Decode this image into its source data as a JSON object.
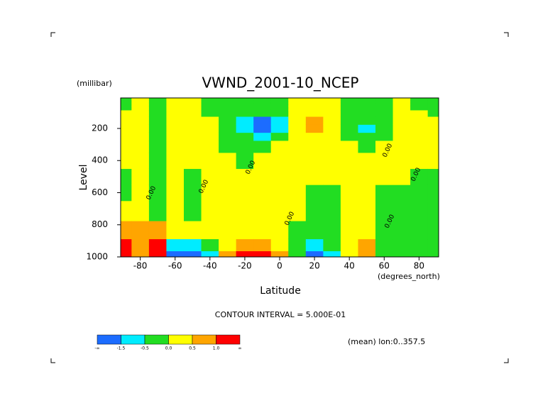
{
  "chart_data": {
    "type": "contour",
    "title": "VWND_2001-10_NCEP",
    "y_units": "(millibar)",
    "y_label": "Level",
    "x_label": "Latitude",
    "x_units": "(degrees_north)",
    "contour_interval_text": "CONTOUR INTERVAL = 5.000E-01",
    "mean_text": "(mean) lon:0..357.5",
    "x": [
      -90,
      -80,
      -70,
      -60,
      -50,
      -40,
      -30,
      -20,
      -10,
      0,
      10,
      20,
      30,
      40,
      50,
      60,
      70,
      80,
      90
    ],
    "y": [
      1000,
      925,
      850,
      700,
      600,
      500,
      400,
      300,
      250,
      200,
      150,
      100,
      70,
      50,
      30,
      20,
      10
    ],
    "z": [
      [
        1.2,
        1.1,
        0.7,
        0.3,
        -0.1,
        -0.1,
        0.1,
        0.2,
        0.2,
        0.1,
        0.1,
        0.1,
        -0.1,
        -0.1,
        -0.1,
        -0.1,
        -0.1
      ],
      [
        0.8,
        0.8,
        0.6,
        0.3,
        0.2,
        0.1,
        0.1,
        0.2,
        0.2,
        0.2,
        0.1,
        0.1,
        0.1,
        0.1,
        0.1,
        0.1,
        0.1
      ],
      [
        1.1,
        1.0,
        0.6,
        -0.1,
        -0.2,
        -0.2,
        -0.2,
        -0.2,
        -0.2,
        -0.2,
        -0.2,
        -0.2,
        -0.1,
        -0.1,
        -0.1,
        -0.1,
        -0.1
      ],
      [
        -1.6,
        -1.0,
        0.2,
        0.3,
        0.2,
        0.2,
        0.1,
        0.1,
        0.1,
        0.1,
        0.1,
        0.1,
        0.1,
        0.1,
        0.1,
        0.1,
        0.1
      ],
      [
        -1.7,
        -0.8,
        0.1,
        -0.1,
        -0.2,
        -0.1,
        0.1,
        0.2,
        0.2,
        0.1,
        0.1,
        0.1,
        0.1,
        0.1,
        0.1,
        0.1,
        0.1
      ],
      [
        -0.6,
        -0.2,
        0.1,
        0.2,
        0.1,
        0.2,
        0.2,
        0.1,
        0.1,
        0.1,
        0.1,
        -0.1,
        -0.1,
        -0.1,
        -0.1,
        -0.1,
        -0.1
      ],
      [
        0.6,
        0.4,
        0.2,
        0.2,
        0.2,
        0.2,
        0.1,
        -0.1,
        -0.2,
        -0.2,
        -0.2,
        -0.2,
        -0.1,
        -0.1,
        -0.1,
        -0.1,
        -0.1
      ],
      [
        1.1,
        0.8,
        0.3,
        0.2,
        0.2,
        0.1,
        -0.1,
        -0.2,
        -0.4,
        -0.6,
        -0.6,
        -0.3,
        -0.2,
        -0.1,
        -0.1,
        -0.1,
        -0.1
      ],
      [
        1.2,
        0.8,
        0.3,
        0.2,
        0.2,
        0.2,
        0.1,
        -0.2,
        -0.6,
        -1.6,
        -1.6,
        -0.4,
        -0.2,
        -0.1,
        -0.1,
        -0.1,
        -0.1
      ],
      [
        0.6,
        0.4,
        0.2,
        0.2,
        0.2,
        0.2,
        0.2,
        0.1,
        -0.3,
        -1.0,
        -0.8,
        -0.2,
        -0.1,
        -0.1,
        -0.1,
        -0.1,
        -0.1
      ],
      [
        -0.2,
        -0.1,
        -0.1,
        0.1,
        0.2,
        0.2,
        0.2,
        0.2,
        0.1,
        0.1,
        0.2,
        0.2,
        0.2,
        0.2,
        0.2,
        0.2,
        0.2
      ],
      [
        -1.6,
        -0.8,
        -0.2,
        -0.1,
        -0.1,
        0.1,
        0.2,
        0.2,
        0.3,
        0.6,
        0.8,
        0.3,
        0.2,
        0.2,
        0.2,
        0.2,
        0.2
      ],
      [
        -0.6,
        -0.2,
        -0.1,
        -0.2,
        -0.1,
        0.1,
        0.2,
        0.2,
        0.2,
        0.2,
        0.2,
        0.2,
        0.2,
        0.1,
        0.1,
        0.1,
        0.1
      ],
      [
        0.2,
        0.2,
        0.2,
        0.2,
        0.2,
        0.2,
        0.2,
        0.1,
        -0.1,
        -0.2,
        -0.2,
        -0.1,
        -0.1,
        -0.1,
        -0.1,
        -0.1,
        -0.1
      ],
      [
        0.7,
        0.6,
        0.2,
        0.2,
        0.2,
        0.2,
        0.2,
        -0.1,
        -0.3,
        -0.6,
        -0.3,
        -0.2,
        -0.1,
        -0.1,
        -0.1,
        -0.1,
        -0.1
      ],
      [
        -0.1,
        -0.1,
        -0.1,
        -0.1,
        -0.1,
        0.1,
        0.2,
        0.1,
        -0.1,
        -0.1,
        -0.1,
        -0.1,
        -0.1,
        -0.1,
        -0.1,
        -0.1,
        -0.1
      ],
      [
        -0.2,
        -0.2,
        -0.2,
        -0.2,
        -0.1,
        0.1,
        0.2,
        0.2,
        0.2,
        0.2,
        0.2,
        0.1,
        0.1,
        0.1,
        0.1,
        0.1,
        0.1
      ],
      [
        -0.2,
        -0.2,
        -0.1,
        -0.1,
        -0.1,
        -0.1,
        0.1,
        0.2,
        0.2,
        0.1,
        0.1,
        0.1,
        -0.1,
        -0.1,
        -0.1,
        -0.1,
        -0.1
      ],
      [
        -0.1,
        -0.1,
        -0.1,
        -0.1,
        -0.1,
        -0.1,
        0.1,
        0.1,
        0.1,
        0.1,
        0.1,
        -0.1,
        -0.1,
        -0.1,
        -0.1,
        -0.1,
        -0.1
      ]
    ],
    "xlim": [
      -91.25,
      91.25
    ],
    "ylim": [
      1000,
      10
    ],
    "xticks": [
      -80,
      -60,
      -40,
      -20,
      0,
      20,
      40,
      60,
      80
    ],
    "yticks": [
      200,
      400,
      600,
      800,
      1000
    ],
    "levels": [
      -1.5,
      -0.5,
      0.0,
      0.5,
      1.0
    ],
    "level_labels": [
      "-1.5",
      "-0.5",
      "0.0",
      "0.5",
      "1.0"
    ],
    "colorbar_ends": [
      "-∞",
      "∞"
    ],
    "colors": [
      "#1c6cff",
      "#00ecff",
      "#22dd22",
      "#ffff00",
      "#ffa500",
      "#ff0000"
    ],
    "contour_labels": [
      "0.00",
      "0.00",
      "0.00",
      "0.00",
      "0.00",
      "0.00",
      "0.00"
    ]
  }
}
